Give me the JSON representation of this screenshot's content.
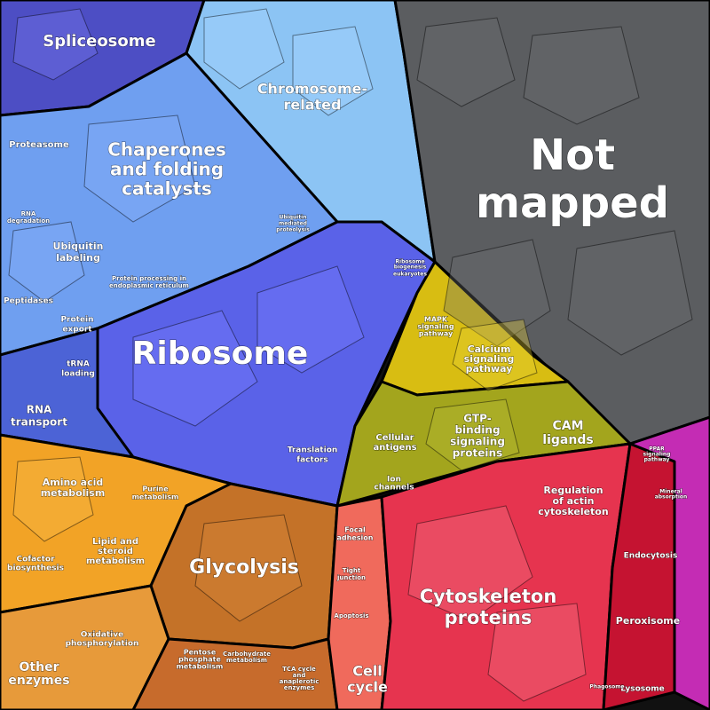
{
  "colors": {
    "blue_dark": "#4a4fc8",
    "blue_mid": "#5a66e8",
    "blue_light": "#7fb6f2",
    "sky": "#8cc8f5",
    "gray": "#595b5e",
    "yellow": "#d9c01a",
    "olive": "#9fa822",
    "orange": "#f0a020",
    "brown": "#c8762a",
    "red": "#e8344c",
    "crimson": "#c9183a",
    "magenta": "#c020b0",
    "salmon": "#ef6060"
  },
  "labels": {
    "spliceosome": "Spliceosome",
    "chromosome_1": "Chromosome-",
    "chromosome_2": "related",
    "not_mapped_1": "Not",
    "not_mapped_2": "mapped",
    "proteasome": "Proteasome",
    "chaperones_1": "Chaperones",
    "chaperones_2": "and folding",
    "chaperones_3": "catalysts",
    "rna_degradation_1": "RNA",
    "rna_degradation_2": "degradation",
    "ubiquitin_labeling_1": "Ubiquitin",
    "ubiquitin_labeling_2": "labeling",
    "ubiquitin_proteolysis_1": "Ubiquitin",
    "ubiquitin_proteolysis_2": "mediated",
    "ubiquitin_proteolysis_3": "proteolysis",
    "peptidases": "Peptidases",
    "protein_processing_1": "Protein processing in",
    "protein_processing_2": "endoplasmic reticulum",
    "protein_export_1": "Protein",
    "protein_export_2": "export",
    "ribosome_biogenesis_1": "Ribosome",
    "ribosome_biogenesis_2": "biogenesis",
    "eukaryotes": "eukaryotes",
    "ribosome": "Ribosome",
    "trna_loading_1": "tRNA",
    "trna_loading_2": "loading",
    "rna_transport_1": "RNA",
    "rna_transport_2": "transport",
    "translation_factors_1": "Translation",
    "translation_factors_2": "factors",
    "mapk_1": "MAPK",
    "mapk_2": "signaling",
    "mapk_3": "pathway",
    "calcium_1": "Calcium",
    "calcium_2": "signaling",
    "calcium_3": "pathway",
    "gtp_1": "GTP-",
    "gtp_2": "binding",
    "gtp_3": "signaling",
    "gtp_4": "proteins",
    "cam_1": "CAM",
    "cam_2": "ligands",
    "cellular_antigens_1": "Cellular",
    "cellular_antigens_2": "antigens",
    "ion_channels_1": "Ion",
    "ion_channels_2": "channels",
    "amino_acid_1": "Amino acid",
    "amino_acid_2": "metabolism",
    "purine_1": "Purine",
    "purine_2": "metabolism",
    "lipid_1": "Lipid and",
    "lipid_2": "steroid",
    "lipid_3": "metabolism",
    "cofactor_1": "Cofactor",
    "cofactor_2": "biosynthesis",
    "glycolysis": "Glycolysis",
    "oxphos_1": "Oxidative",
    "oxphos_2": "phosphorylation",
    "other_enzymes_1": "Other",
    "other_enzymes_2": "enzymes",
    "pentose_1": "Pentose",
    "pentose_2": "phosphate",
    "pentose_3": "metabolism",
    "carbohydrate_1": "Carbohydrate",
    "carbohydrate_2": "metabolism",
    "tca_1": "TCA cycle",
    "tca_2": "and",
    "tca_3": "anaplerotic",
    "tca_4": "enzymes",
    "focal_adhesion_1": "Focal",
    "focal_adhesion_2": "adhesion",
    "tight_junction_1": "Tight",
    "tight_junction_2": "junction",
    "apoptosis": "Apoptosis",
    "cell_cycle_1": "Cell",
    "cell_cycle_2": "cycle",
    "regulation_actin_1": "Regulation",
    "regulation_actin_2": "of actin",
    "regulation_actin_3": "cytoskeleton",
    "cytoskeleton_1": "Cytoskeleton",
    "cytoskeleton_2": "proteins",
    "endocytosis": "Endocytosis",
    "peroxisome": "Peroxisome",
    "lysosome": "Lysosome",
    "ppar_1": "PPAR",
    "ppar_2": "signaling",
    "ppar_3": "pathway",
    "mineral_1": "Mineral",
    "mineral_2": "absorption",
    "phagosome": "Phagosome"
  }
}
